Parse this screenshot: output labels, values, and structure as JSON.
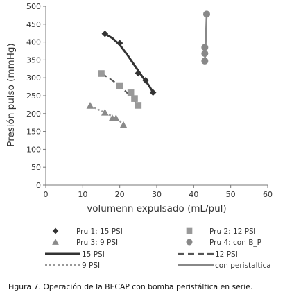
{
  "chart_data": {
    "type": "scatter",
    "xlabel": "volumenn expulsado (mL/pul)",
    "ylabel": "Presión pulso (mmHg)",
    "xlim": [
      0,
      60
    ],
    "ylim": [
      0,
      500
    ],
    "x_ticks": [
      0,
      10,
      20,
      30,
      40,
      50,
      60
    ],
    "y_ticks": [
      0,
      50,
      100,
      150,
      200,
      250,
      300,
      350,
      400,
      450,
      500
    ],
    "grid": false,
    "legend_position": "bottom",
    "series": [
      {
        "name": "Pru 1: 15 PSI",
        "marker": "diamond",
        "color": "#333333",
        "x": [
          16,
          20,
          25,
          27,
          29
        ],
        "y": [
          423,
          397,
          313,
          293,
          259
        ]
      },
      {
        "name": "Pru 2: 12 PSI",
        "marker": "square",
        "color": "#999999",
        "x": [
          15,
          20,
          23,
          24,
          25
        ],
        "y": [
          312,
          278,
          258,
          242,
          223
        ]
      },
      {
        "name": "Pru 3: 9 PSI",
        "marker": "triangle",
        "color": "#8a8a8a",
        "x": [
          12,
          16,
          18,
          19,
          21
        ],
        "y": [
          222,
          203,
          187,
          187,
          168
        ]
      },
      {
        "name": "Pru 4: con B_P",
        "marker": "circle",
        "color": "#888888",
        "x": [
          43,
          43,
          43,
          43.5
        ],
        "y": [
          347,
          368,
          385,
          478
        ]
      }
    ],
    "trendlines": [
      {
        "name": "15 PSI",
        "style": "solid-thick",
        "color": "#333333",
        "x": [
          16,
          18,
          20,
          22,
          24,
          26,
          28,
          29
        ],
        "y": [
          423,
          411,
          392,
          365,
          335,
          305,
          277,
          259
        ]
      },
      {
        "name": "12 PSI",
        "style": "long-dash",
        "color": "#555555",
        "x": [
          15,
          17,
          19,
          21,
          23,
          25
        ],
        "y": [
          312,
          300,
          285,
          268,
          248,
          223
        ]
      },
      {
        "name": "9 PSI",
        "style": "short-dash",
        "color": "#999999",
        "x": [
          12,
          14,
          16,
          18,
          20,
          21
        ],
        "y": [
          222,
          212,
          203,
          192,
          179,
          168
        ]
      },
      {
        "name": "con peristaltica",
        "style": "solid",
        "color": "#888888",
        "x": [
          43,
          43.2,
          43.5
        ],
        "y": [
          347,
          385,
          478
        ]
      }
    ]
  },
  "caption": "Figura 7.  Operación de la BECAP con bomba peristáltica en serie."
}
